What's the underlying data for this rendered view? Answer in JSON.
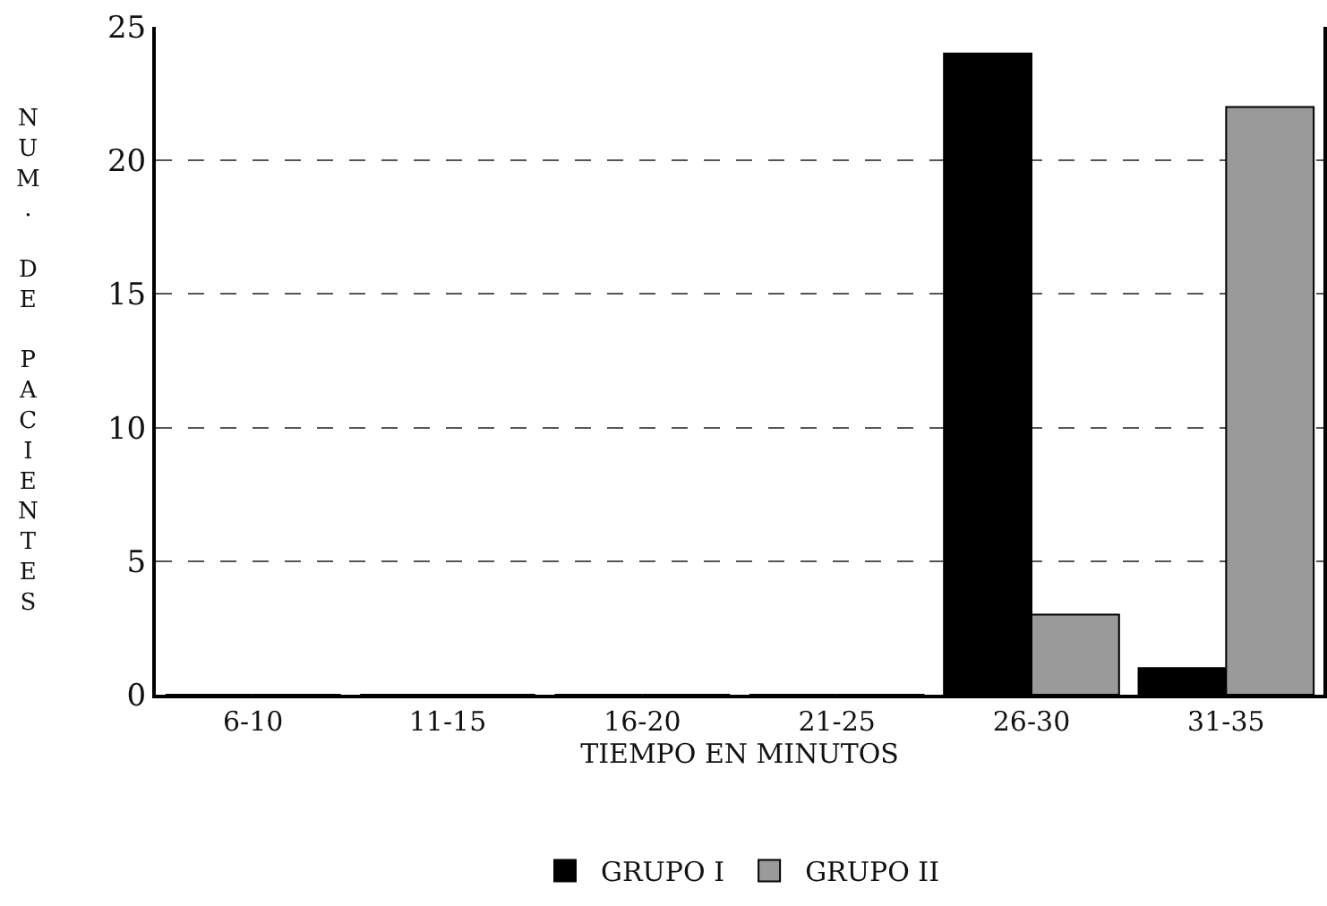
{
  "chart_data": {
    "type": "bar",
    "xlabel": "TIEMPO EN MINUTOS",
    "ylabel": "NUM. DE PACIENTES",
    "categories": [
      "6-10",
      "11-15",
      "16-20",
      "21-25",
      "26-30",
      "31-35"
    ],
    "series": [
      {
        "name": "GRUPO I",
        "color": "#000000",
        "values": [
          0,
          0,
          0,
          0,
          24,
          1
        ]
      },
      {
        "name": "GRUPO II",
        "color": "#9a9a9a",
        "values": [
          0,
          0,
          0,
          0,
          3,
          22
        ]
      }
    ],
    "ylim": [
      0,
      25
    ],
    "yticks": [
      0,
      5,
      10,
      15,
      20,
      25
    ],
    "grid": "y",
    "legend": "bottom"
  }
}
